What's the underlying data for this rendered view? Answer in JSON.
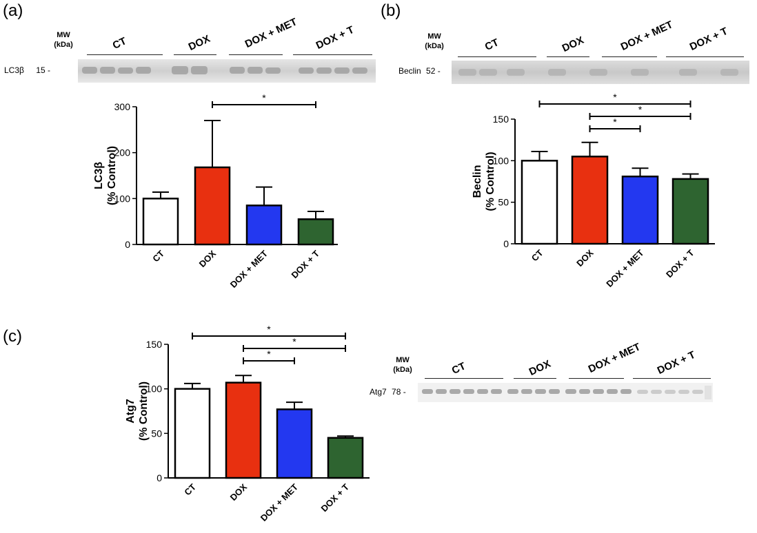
{
  "panels": [
    {
      "letter": "(a)",
      "mw_label": "MW\n(kDa)",
      "protein_label": "LC3β",
      "mw_value": "15 -",
      "groups": [
        "CT",
        "DOX",
        "DOX + MET",
        "DOX + T"
      ],
      "chart": {
        "type": "bar",
        "categories": [
          "CT",
          "DOX",
          "DOX + MET",
          "DOX + T"
        ],
        "values": [
          100,
          168,
          85,
          55
        ],
        "errors": [
          14,
          102,
          40,
          17
        ],
        "colors": [
          "#ffffff",
          "#e83010",
          "#2338f0",
          "#2e6430"
        ],
        "ylabel_line1": "LC3β",
        "ylabel_line2": "(% Control)",
        "ylim": [
          0,
          300
        ],
        "yticks": [
          0,
          100,
          200,
          300
        ],
        "significance": [
          {
            "from": 1,
            "to": 3,
            "label": "*"
          }
        ]
      }
    },
    {
      "letter": "(b)",
      "mw_label": "MW\n(kDa)",
      "protein_label": "Beclin",
      "mw_value": "52 -",
      "groups": [
        "CT",
        "DOX",
        "DOX + MET",
        "DOX + T"
      ],
      "chart": {
        "type": "bar",
        "categories": [
          "CT",
          "DOX",
          "DOX + MET",
          "DOX + T"
        ],
        "values": [
          100,
          105,
          81,
          78
        ],
        "errors": [
          11,
          17,
          10,
          6
        ],
        "colors": [
          "#ffffff",
          "#e83010",
          "#2338f0",
          "#2e6430"
        ],
        "ylabel_line1": "Beclin",
        "ylabel_line2": "(% Control)",
        "ylim": [
          0,
          150
        ],
        "yticks": [
          0,
          50,
          100,
          150
        ],
        "significance": [
          {
            "from": 0,
            "to": 3,
            "label": "*"
          },
          {
            "from": 1,
            "to": 3,
            "label": "*"
          },
          {
            "from": 1,
            "to": 2,
            "label": "*"
          }
        ]
      }
    },
    {
      "letter": "(c)",
      "mw_label": "MW\n(kDa)",
      "protein_label": "Atg7",
      "mw_value": "78 -",
      "groups": [
        "CT",
        "DOX",
        "DOX + MET",
        "DOX + T"
      ],
      "chart": {
        "type": "bar",
        "categories": [
          "CT",
          "DOX",
          "DOX + MET",
          "DOX + T"
        ],
        "values": [
          100,
          107,
          77,
          45
        ],
        "errors": [
          6,
          8,
          8,
          2
        ],
        "colors": [
          "#ffffff",
          "#e83010",
          "#2338f0",
          "#2e6430"
        ],
        "ylabel_line1": "Atg7",
        "ylabel_line2": "(% Control)",
        "ylim": [
          0,
          150
        ],
        "yticks": [
          0,
          50,
          100,
          150
        ],
        "significance": [
          {
            "from": 0,
            "to": 3,
            "label": "*"
          },
          {
            "from": 1,
            "to": 3,
            "label": "*"
          },
          {
            "from": 1,
            "to": 2,
            "label": "*"
          }
        ]
      }
    }
  ],
  "chart_data": [
    {
      "type": "bar",
      "categories": [
        "CT",
        "DOX",
        "DOX + MET",
        "DOX + T"
      ],
      "values": [
        100,
        168,
        85,
        55
      ],
      "errors": [
        14,
        102,
        40,
        17
      ],
      "ylabel": "LC3β (% Control)",
      "ylim": [
        0,
        300
      ]
    },
    {
      "type": "bar",
      "categories": [
        "CT",
        "DOX",
        "DOX + MET",
        "DOX + T"
      ],
      "values": [
        100,
        105,
        81,
        78
      ],
      "errors": [
        11,
        17,
        10,
        6
      ],
      "ylabel": "Beclin (% Control)",
      "ylim": [
        0,
        150
      ]
    },
    {
      "type": "bar",
      "categories": [
        "CT",
        "DOX",
        "DOX + MET",
        "DOX + T"
      ],
      "values": [
        100,
        107,
        77,
        45
      ],
      "errors": [
        6,
        8,
        8,
        2
      ],
      "ylabel": "Atg7 (% Control)",
      "ylim": [
        0,
        150
      ]
    }
  ]
}
